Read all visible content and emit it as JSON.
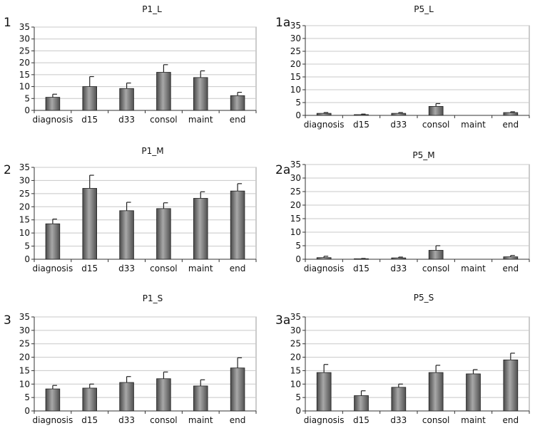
{
  "colors": {
    "bar_fill_dark": "#555555",
    "bar_fill_light": "#a8a8a8",
    "grid": "#c8c8c8",
    "axis": "#333333"
  },
  "chart_data": [
    {
      "id": "1",
      "type": "bar",
      "title": "P1_L",
      "categories": [
        "diagnosis",
        "d15",
        "d33",
        "consol",
        "maint",
        "end"
      ],
      "values": [
        5.5,
        10,
        9.2,
        16,
        13.8,
        6.2
      ],
      "errors": [
        1.3,
        4.2,
        2.3,
        3.2,
        2.8,
        1.4
      ],
      "ylim": [
        0,
        35
      ],
      "yticks": [
        "0",
        "5",
        "10",
        "15",
        "20",
        "25",
        "30",
        "35"
      ],
      "grid": true
    },
    {
      "id": "1a",
      "type": "bar",
      "title": "P5_L",
      "categories": [
        "diagnosis",
        "d15",
        "d33",
        "consol",
        "maint",
        "end"
      ],
      "values": [
        0.8,
        0.3,
        0.8,
        3.5,
        0,
        1.1
      ],
      "errors": [
        0.3,
        0.2,
        0.3,
        1.1,
        0,
        0.3
      ],
      "ylim": [
        0,
        35
      ],
      "yticks": [
        "0",
        "5",
        "10",
        "15",
        "20",
        "25",
        "30",
        "35"
      ],
      "grid": true
    },
    {
      "id": "2",
      "type": "bar",
      "title": "P1_M",
      "categories": [
        "diagnosis",
        "d15",
        "d33",
        "consol",
        "maint",
        "end"
      ],
      "values": [
        13.5,
        27,
        18.5,
        19.3,
        23.2,
        26
      ],
      "errors": [
        1.8,
        5,
        3.2,
        2.2,
        2.5,
        2.8
      ],
      "ylim": [
        0,
        35
      ],
      "yticks": [
        "0",
        "5",
        "10",
        "15",
        "20",
        "25",
        "30",
        "35"
      ],
      "grid": true
    },
    {
      "id": "2a",
      "type": "bar",
      "title": "P5_M",
      "categories": [
        "diagnosis",
        "d15",
        "d33",
        "consol",
        "maint",
        "end"
      ],
      "values": [
        0.6,
        0.2,
        0.5,
        3.3,
        0,
        0.9
      ],
      "errors": [
        0.5,
        0.1,
        0.3,
        1.7,
        0,
        0.5
      ],
      "ylim": [
        0,
        35
      ],
      "yticks": [
        "0",
        "5",
        "10",
        "15",
        "20",
        "25",
        "30",
        "35"
      ],
      "grid": true
    },
    {
      "id": "3",
      "type": "bar",
      "title": "P1_S",
      "categories": [
        "diagnosis",
        "d15",
        "d33",
        "consol",
        "maint",
        "end"
      ],
      "values": [
        8.2,
        8.5,
        10.6,
        12,
        9.3,
        16
      ],
      "errors": [
        1.3,
        1.5,
        2.2,
        2.5,
        2.3,
        3.8
      ],
      "ylim": [
        0,
        35
      ],
      "yticks": [
        "0",
        "5",
        "10",
        "15",
        "20",
        "25",
        "30",
        "35"
      ],
      "grid": true
    },
    {
      "id": "3a",
      "type": "bar",
      "title": "P5_S",
      "categories": [
        "diagnosis",
        "d15",
        "d33",
        "consol",
        "maint",
        "end"
      ],
      "values": [
        14.3,
        5.7,
        8.8,
        14.3,
        13.8,
        19
      ],
      "errors": [
        3,
        1.8,
        1.2,
        2.7,
        1.6,
        2.5
      ],
      "ylim": [
        0,
        35
      ],
      "yticks": [
        "0",
        "5",
        "10",
        "15",
        "20",
        "25",
        "30",
        "35"
      ],
      "grid": true
    }
  ]
}
